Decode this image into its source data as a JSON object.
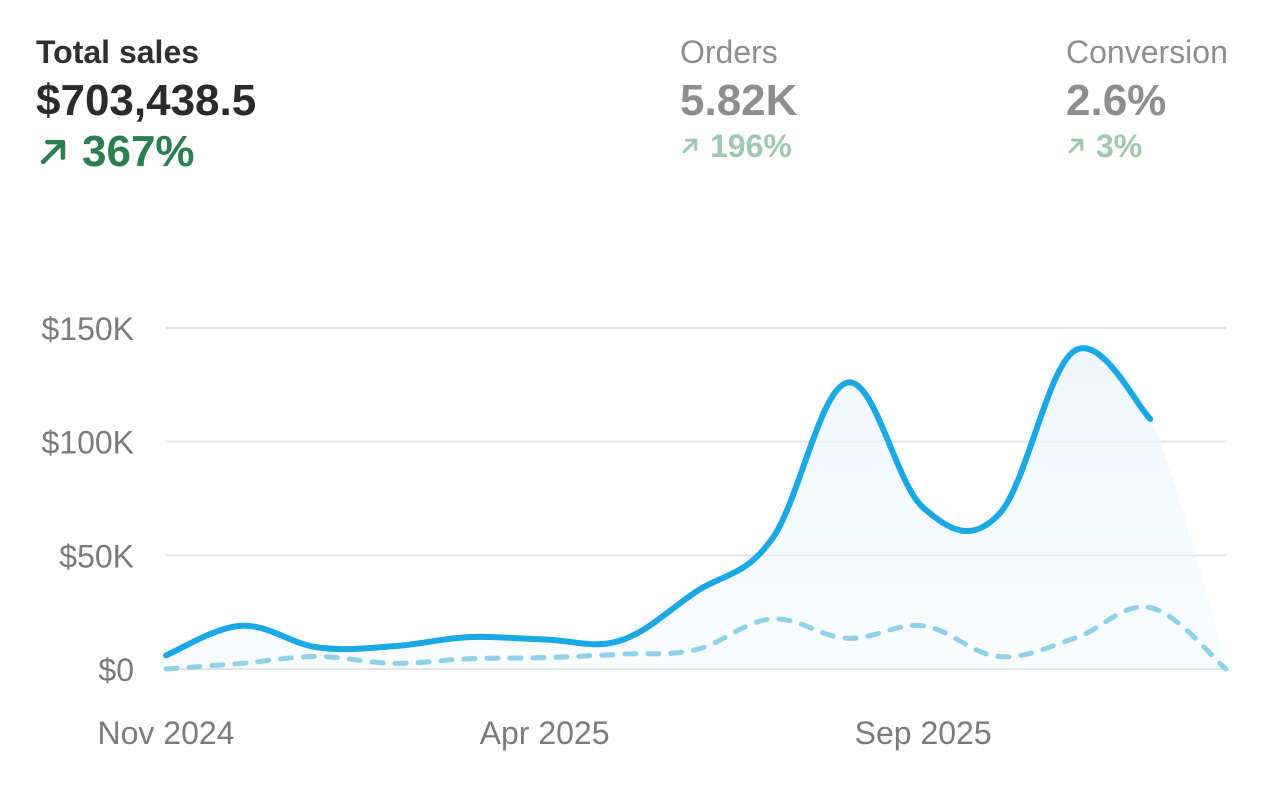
{
  "metrics": {
    "sales": {
      "label": "Total sales",
      "value": "$703,438.5",
      "change": "367%"
    },
    "orders": {
      "label": "Orders",
      "value": "5.82K",
      "change": "196%"
    },
    "conversion": {
      "label": "Conversion",
      "value": "2.6%",
      "change": "3%"
    }
  },
  "colors": {
    "current_line": "#1aa9e6",
    "previous_line": "#8fd0ea",
    "area_fill": "#eef6fa",
    "positive": "#2c7d52",
    "positive_muted": "#9fc7b1",
    "grid": "#e2e2e2"
  },
  "icons": {
    "change": "arrow-up-right-icon"
  },
  "chart_data": {
    "type": "line",
    "ylim": [
      0,
      150000
    ],
    "y_ticks": [
      {
        "value": 0,
        "label": "$0"
      },
      {
        "value": 50000,
        "label": "$50K"
      },
      {
        "value": 100000,
        "label": "$100K"
      },
      {
        "value": 150000,
        "label": "$150K"
      }
    ],
    "x_ticks": [
      "Nov 2024",
      "Apr 2025",
      "Sep 2025"
    ],
    "x_tick_index": [
      0,
      5,
      10
    ],
    "series": [
      {
        "style": "solid",
        "points": [
          [
            0,
            6000
          ],
          [
            1,
            19000
          ],
          [
            2,
            9500
          ],
          [
            3,
            10000
          ],
          [
            4,
            14000
          ],
          [
            5,
            13000
          ],
          [
            6,
            12500
          ],
          [
            7,
            34000
          ],
          [
            8,
            57000
          ],
          [
            9,
            126000
          ],
          [
            10,
            71000
          ],
          [
            11,
            68000
          ],
          [
            12,
            140000
          ],
          [
            13,
            110000
          ],
          [
            14,
            3000
          ]
        ],
        "projected_from": 13
      },
      {
        "style": "dashed",
        "points": [
          [
            0,
            0
          ],
          [
            1,
            2500
          ],
          [
            2,
            5500
          ],
          [
            3,
            2500
          ],
          [
            4,
            4500
          ],
          [
            5,
            5000
          ],
          [
            6,
            6500
          ],
          [
            7,
            8500
          ],
          [
            8,
            22000
          ],
          [
            9,
            13500
          ],
          [
            10,
            19000
          ],
          [
            11,
            5500
          ],
          [
            12,
            13500
          ],
          [
            13,
            27000
          ],
          [
            14,
            0
          ]
        ]
      }
    ]
  }
}
